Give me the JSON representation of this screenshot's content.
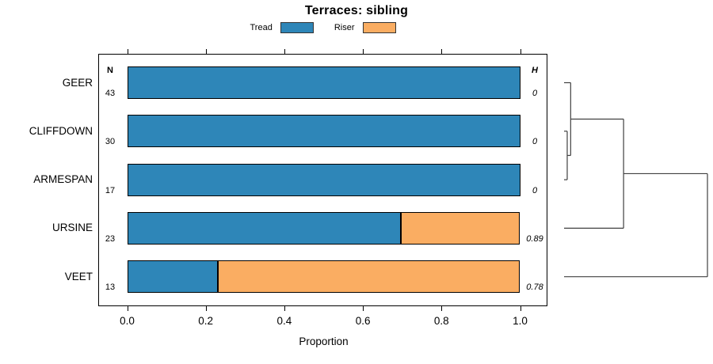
{
  "columns": {
    "n_header": "N",
    "h_header": "H"
  },
  "chart_data": {
    "type": "bar",
    "orientation": "horizontal",
    "stacked": true,
    "title": "Terraces: sibling",
    "categories": [
      "GEER",
      "CLIFFDOWN",
      "ARMESPAN",
      "URSINE",
      "VEET"
    ],
    "n_values": [
      43,
      30,
      17,
      23,
      13
    ],
    "h_values": [
      "0",
      "0",
      "0",
      "0.89",
      "0.78"
    ],
    "series": [
      {
        "name": "Tread",
        "color": "#2E86B8",
        "values": [
          1.0,
          1.0,
          1.0,
          0.696,
          0.231
        ]
      },
      {
        "name": "Riser",
        "color": "#FAAD62",
        "values": [
          0.0,
          0.0,
          0.0,
          0.304,
          0.769
        ]
      }
    ],
    "xlabel": "Proportion",
    "xlim": [
      0.0,
      1.0
    ],
    "xticks": [
      0.0,
      0.2,
      0.4,
      0.6,
      0.8,
      1.0
    ],
    "grid": false,
    "legend_position": "top",
    "dendrogram": {
      "leaves": [
        "GEER",
        "CLIFFDOWN",
        "ARMESPAN",
        "URSINE",
        "VEET"
      ],
      "merges": [
        {
          "id": "m0",
          "a": "CLIFFDOWN",
          "b": "ARMESPAN",
          "height": 0.022
        },
        {
          "id": "m1",
          "a": "GEER",
          "b": "m0",
          "height": 0.046
        },
        {
          "id": "m2",
          "a": "m1",
          "b": "URSINE",
          "height": 0.415
        },
        {
          "id": "m3",
          "a": "m2",
          "b": "VEET",
          "height": 1.0
        }
      ]
    }
  }
}
